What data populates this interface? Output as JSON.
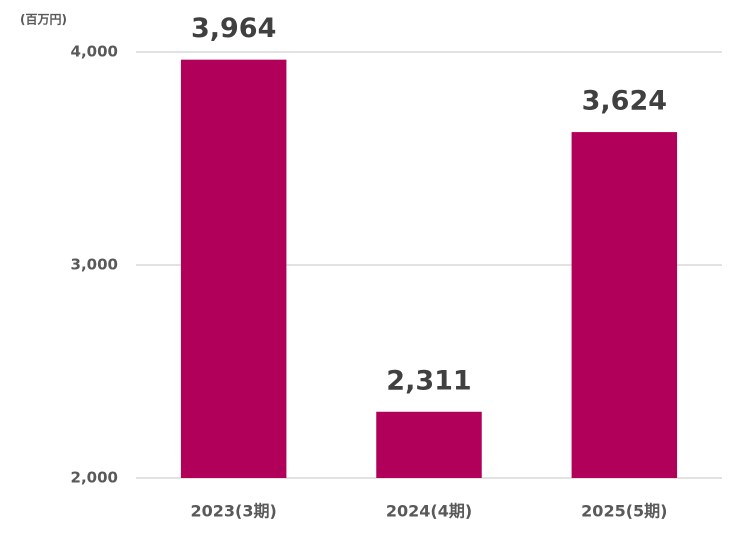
{
  "chart_data": {
    "type": "bar",
    "unit_label": "(百万円)",
    "categories": [
      "2023(3期)",
      "2024(4期)",
      "2025(5期)"
    ],
    "values": [
      3964,
      2311,
      3624
    ],
    "value_labels": [
      "3,964",
      "2,311",
      "3,624"
    ],
    "color": "#b0005a",
    "ylim": [
      2000,
      4000
    ],
    "yticks": [
      {
        "value": 2000,
        "label": "2,000"
      },
      {
        "value": 3000,
        "label": "3,000"
      },
      {
        "value": 4000,
        "label": "4,000"
      }
    ],
    "grid": true
  }
}
